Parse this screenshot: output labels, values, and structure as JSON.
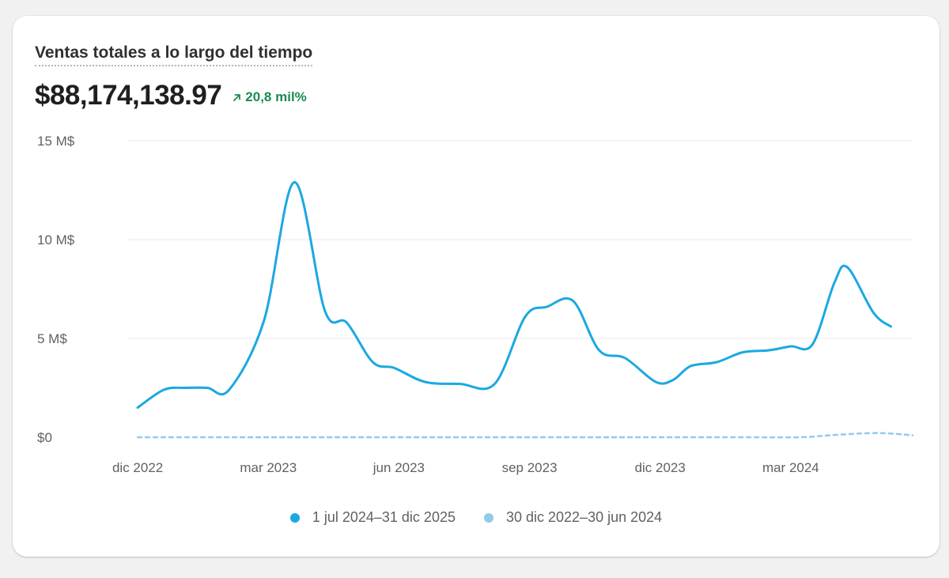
{
  "card": {
    "title": "Ventas totales a lo largo del tiempo",
    "total": "$88,174,138.97",
    "change": "20,8 mil%",
    "change_color": "#1a8c4e"
  },
  "legend": {
    "items": [
      {
        "label": "1 jul 2024–31 dic 2025",
        "color": "#1ba8e2"
      },
      {
        "label": "30 dic 2022–30 jun 2024",
        "color": "#94caea"
      }
    ]
  },
  "chart_data": {
    "type": "line",
    "y_ticks": [
      {
        "label": "$0",
        "value": 0
      },
      {
        "label": "5 M$",
        "value": 5000000
      },
      {
        "label": "10 M$",
        "value": 10000000
      },
      {
        "label": "15 M$",
        "value": 15000000
      }
    ],
    "ylim": [
      0,
      15000000
    ],
    "x_ticks": [
      {
        "label": "dic 2022",
        "value": 0
      },
      {
        "label": "mar 2023",
        "value": 3
      },
      {
        "label": "jun 2023",
        "value": 6
      },
      {
        "label": "sep 2023",
        "value": 9
      },
      {
        "label": "dic 2023",
        "value": 12
      },
      {
        "label": "mar 2024",
        "value": 15
      }
    ],
    "xlim": [
      -0.22,
      17.8
    ],
    "grid": true,
    "legend_position": "bottom",
    "series": [
      {
        "name": "1 jul 2024–31 dic 2025",
        "color": "#1ba8e2",
        "style": "solid",
        "points": [
          [
            0,
            1500000
          ],
          [
            0.6,
            2400000
          ],
          [
            1.1,
            2500000
          ],
          [
            1.6,
            2500000
          ],
          [
            2.1,
            2400000
          ],
          [
            2.9,
            5900000
          ],
          [
            3.6,
            12900000
          ],
          [
            4.3,
            6400000
          ],
          [
            4.8,
            5800000
          ],
          [
            5.4,
            3800000
          ],
          [
            5.9,
            3500000
          ],
          [
            6.6,
            2800000
          ],
          [
            7.4,
            2700000
          ],
          [
            8.2,
            2700000
          ],
          [
            8.9,
            6100000
          ],
          [
            9.4,
            6600000
          ],
          [
            10.0,
            6900000
          ],
          [
            10.6,
            4400000
          ],
          [
            11.2,
            4000000
          ],
          [
            11.9,
            2800000
          ],
          [
            12.3,
            2900000
          ],
          [
            12.7,
            3600000
          ],
          [
            13.3,
            3800000
          ],
          [
            13.9,
            4300000
          ],
          [
            14.5,
            4400000
          ],
          [
            15.0,
            4600000
          ],
          [
            15.5,
            4700000
          ],
          [
            16.0,
            7800000
          ],
          [
            16.3,
            8600000
          ],
          [
            16.9,
            6300000
          ],
          [
            17.3,
            5600000
          ]
        ]
      },
      {
        "name": "30 dic 2022–30 jun 2024",
        "color": "#94caea",
        "style": "dashed",
        "points": [
          [
            0,
            0
          ],
          [
            2,
            0
          ],
          [
            4,
            0
          ],
          [
            6,
            0
          ],
          [
            8,
            0
          ],
          [
            10,
            0
          ],
          [
            12,
            0
          ],
          [
            14,
            0
          ],
          [
            15.2,
            0
          ],
          [
            15.9,
            100000
          ],
          [
            16.7,
            200000
          ],
          [
            17.2,
            200000
          ],
          [
            17.8,
            100000
          ]
        ]
      }
    ]
  }
}
